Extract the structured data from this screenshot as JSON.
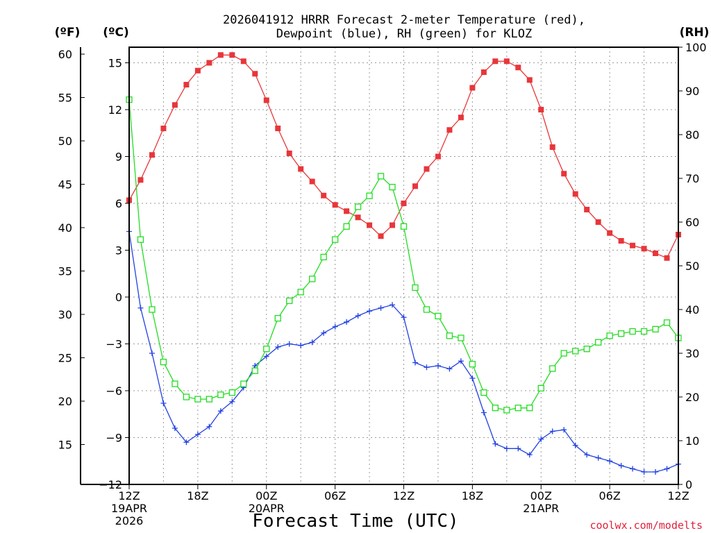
{
  "chart_data": {
    "type": "line",
    "title_lines": [
      "2026041912 HRRR Forecast 2-meter Temperature (red),",
      "Dewpoint (blue), RH (green) for KLOZ"
    ],
    "axis_headers": {
      "fahrenheit": "(ºF)",
      "celsius": "(ºC)",
      "rh": "(RH)"
    },
    "xlabel": "Forecast Time (UTC)",
    "credit": "coolwx.com/modelts",
    "x_range_hours": [
      0,
      48
    ],
    "x_ticks": [
      {
        "hour": 0,
        "label": "12Z",
        "date": "19APR",
        "year": "2026"
      },
      {
        "hour": 6,
        "label": "18Z"
      },
      {
        "hour": 12,
        "label": "00Z",
        "date": "20APR"
      },
      {
        "hour": 18,
        "label": "06Z"
      },
      {
        "hour": 24,
        "label": "12Z"
      },
      {
        "hour": 30,
        "label": "18Z"
      },
      {
        "hour": 36,
        "label": "00Z",
        "date": "21APR"
      },
      {
        "hour": 42,
        "label": "06Z"
      },
      {
        "hour": 48,
        "label": "12Z"
      }
    ],
    "celsius_ticks": [
      "15",
      "12",
      "9",
      "6",
      "3",
      "0",
      "−3",
      "−6",
      "−9",
      "−12"
    ],
    "fahrenheit_ticks": [
      "60",
      "55",
      "50",
      "45",
      "40",
      "35",
      "30",
      "25",
      "20",
      "15"
    ],
    "rh_ticks": [
      "100",
      "90",
      "80",
      "70",
      "60",
      "50",
      "40",
      "30",
      "20",
      "10",
      "0"
    ],
    "celsius_range": [
      -12,
      16
    ],
    "rh_range": [
      0,
      100
    ],
    "series": [
      {
        "key": "temperature",
        "units": "C",
        "color": "#e8363a",
        "marker": "filled-square",
        "values": [
          6.2,
          7.5,
          9.1,
          10.8,
          12.3,
          13.6,
          14.5,
          15.0,
          15.5,
          15.5,
          15.1,
          14.3,
          12.6,
          10.8,
          9.2,
          8.2,
          7.4,
          6.5,
          5.9,
          5.5,
          5.1,
          4.6,
          3.9,
          4.6,
          6.0,
          7.1,
          8.2,
          9.0,
          10.7,
          11.5,
          13.4,
          14.4,
          15.1,
          15.1,
          14.7,
          13.9,
          12.0,
          9.6,
          7.9,
          6.6,
          5.6,
          4.8,
          4.1,
          3.6,
          3.3,
          3.1,
          2.8,
          2.5,
          4.0
        ]
      },
      {
        "key": "dewpoint",
        "units": "C",
        "color": "#2040e0",
        "marker": "plus",
        "values": [
          4.2,
          -0.7,
          -3.6,
          -6.8,
          -8.4,
          -9.3,
          -8.8,
          -8.3,
          -7.3,
          -6.7,
          -5.8,
          -4.4,
          -3.8,
          -3.2,
          -3.0,
          -3.1,
          -2.9,
          -2.3,
          -1.9,
          -1.6,
          -1.2,
          -0.9,
          -0.7,
          -0.5,
          -1.3,
          -4.2,
          -4.5,
          -4.4,
          -4.6,
          -4.1,
          -5.2,
          -7.4,
          -9.4,
          -9.7,
          -9.7,
          -10.1,
          -9.1,
          -8.6,
          -8.5,
          -9.5,
          -10.1,
          -10.3,
          -10.5,
          -10.8,
          -11.0,
          -11.2,
          -11.2,
          -11.0,
          -10.7
        ]
      },
      {
        "key": "rh",
        "units": "%",
        "color": "#22dd22",
        "marker": "open-square",
        "values": [
          88,
          56,
          40,
          28,
          23,
          20,
          19.5,
          19.5,
          20.5,
          21,
          23,
          26,
          31,
          38,
          42,
          44,
          47,
          52,
          56,
          59,
          63.5,
          66,
          70.5,
          68,
          59,
          45,
          40,
          38.5,
          34,
          33.5,
          27.5,
          21,
          17.5,
          17,
          17.5,
          17.5,
          22,
          26.5,
          30,
          30.5,
          31,
          32.5,
          34,
          34.5,
          35,
          35,
          35.5,
          37,
          33.5
        ]
      }
    ]
  }
}
